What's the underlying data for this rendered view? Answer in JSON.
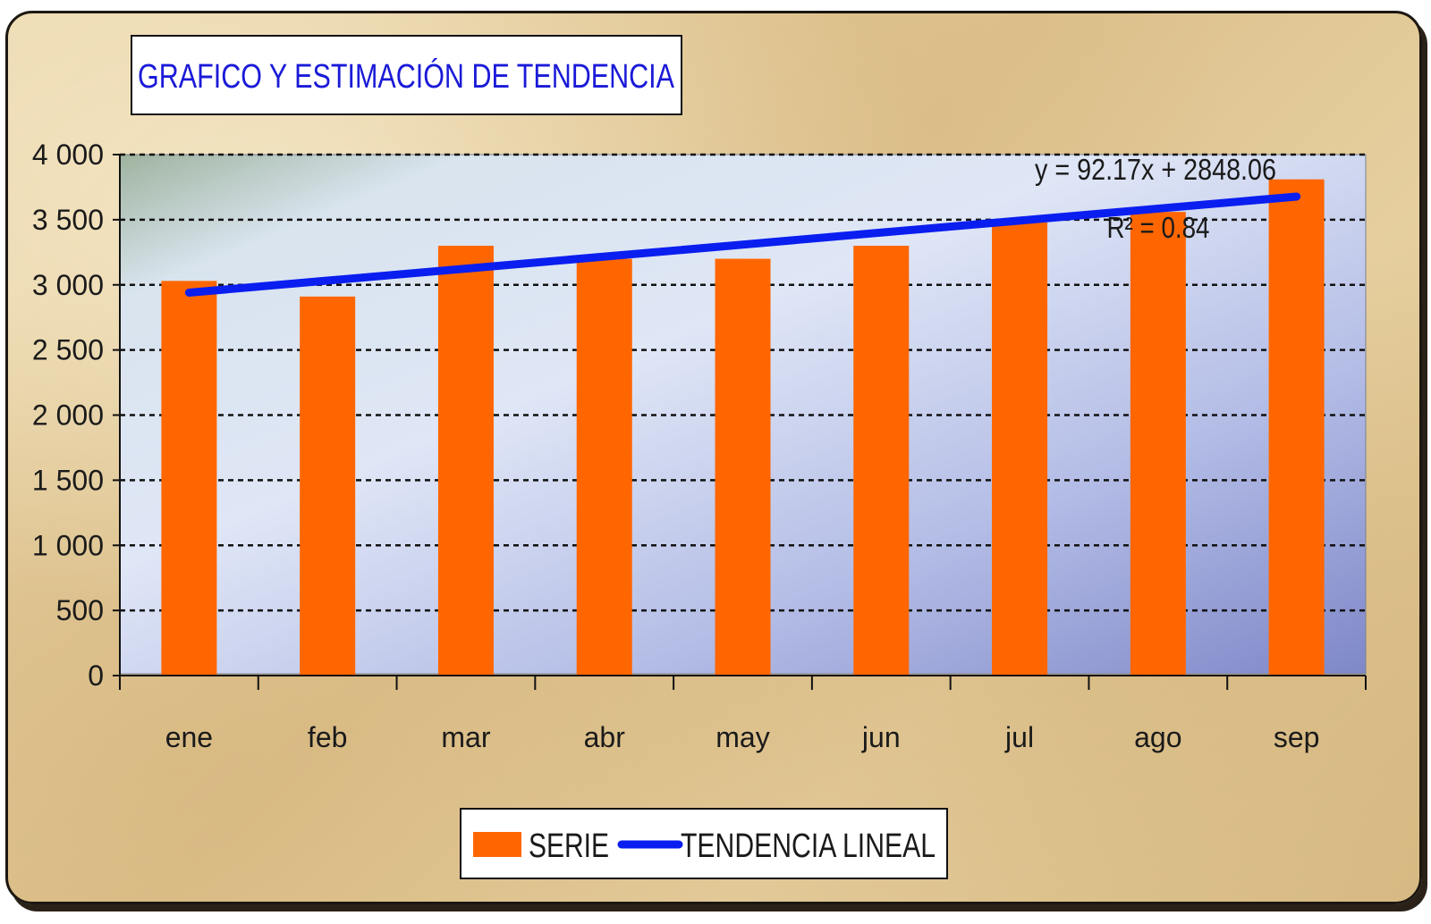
{
  "chart_data": {
    "type": "bar",
    "title": "GRAFICO Y ESTIMACIÓN DE TENDENCIA",
    "categories": [
      "ene",
      "feb",
      "mar",
      "abr",
      "may",
      "jun",
      "jul",
      "ago",
      "sep"
    ],
    "series": [
      {
        "name": "SERIE",
        "type": "bar",
        "color": "#ff6600",
        "values": [
          3030,
          2910,
          3300,
          3200,
          3200,
          3300,
          3480,
          3560,
          3810
        ]
      },
      {
        "name": "TENDENCIA LINEAL",
        "type": "line",
        "color": "#0a1ef0",
        "values": [
          2940.23,
          3032.4,
          3124.57,
          3216.74,
          3308.91,
          3401.08,
          3493.25,
          3585.42,
          3677.59
        ]
      }
    ],
    "ylim": [
      0,
      4000
    ],
    "yticks": [
      0,
      500,
      1000,
      1500,
      2000,
      2500,
      3000,
      3500,
      4000
    ],
    "ytick_labels": [
      "0",
      "500",
      "1 000",
      "1 500",
      "2 000",
      "2 500",
      "3 000",
      "3 500",
      "4 000"
    ],
    "xlabel": "",
    "ylabel": "",
    "grid": "horizontal dashed",
    "legend": {
      "placement": "bottom",
      "entries": [
        "SERIE",
        "TENDENCIA LINEAL"
      ]
    },
    "annotations": {
      "equation": "y = 92.17x + 2848.06",
      "r_squared": "R² = 0.84"
    }
  },
  "colors": {
    "bar": "#ff6600",
    "trend": "#0a1ef0",
    "title_text": "#1a1ad8",
    "grid": "#111111"
  }
}
